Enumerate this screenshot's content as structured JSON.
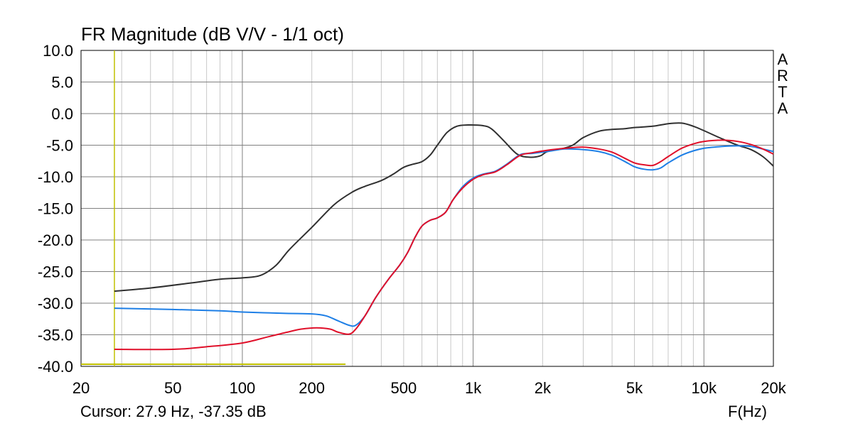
{
  "header": {
    "title": "FR Magnitude (dB V/V - 1/1 oct)"
  },
  "footer": {
    "cursor_text": "Cursor: 27.9 Hz, -37.35 dB",
    "x_unit": "F(Hz)"
  },
  "brand": {
    "letters": [
      "A",
      "R",
      "T",
      "A"
    ]
  },
  "chart_data": {
    "type": "line",
    "title": "FR Magnitude (dB V/V - 1/1 oct)",
    "xlabel": "F(Hz)",
    "ylabel": "",
    "x_scale": "log",
    "xlim": [
      20,
      20000
    ],
    "ylim": [
      -40,
      10
    ],
    "x_ticks": [
      {
        "value": 20,
        "label": "20"
      },
      {
        "value": 50,
        "label": "50"
      },
      {
        "value": 100,
        "label": "100"
      },
      {
        "value": 200,
        "label": "200"
      },
      {
        "value": 500,
        "label": "500"
      },
      {
        "value": 1000,
        "label": "1k"
      },
      {
        "value": 2000,
        "label": "2k"
      },
      {
        "value": 5000,
        "label": "5k"
      },
      {
        "value": 10000,
        "label": "10k"
      },
      {
        "value": 20000,
        "label": "20k"
      }
    ],
    "y_ticks": [
      {
        "value": 10,
        "label": "10.0"
      },
      {
        "value": 5,
        "label": "5.0"
      },
      {
        "value": 0,
        "label": "0.0"
      },
      {
        "value": -5,
        "label": "-5.0"
      },
      {
        "value": -10,
        "label": "-10.0"
      },
      {
        "value": -15,
        "label": "-15.0"
      },
      {
        "value": -20,
        "label": "-20.0"
      },
      {
        "value": -25,
        "label": "-25.0"
      },
      {
        "value": -30,
        "label": "-30.0"
      },
      {
        "value": -35,
        "label": "-35.0"
      },
      {
        "value": -40,
        "label": "-40.0"
      }
    ],
    "grid": true,
    "colors": {
      "grid_major": "#808080",
      "grid_minor": "#c8c8c8",
      "cursor": "#c0c000"
    },
    "cursor": {
      "x": 27.9,
      "y": -37.35,
      "reference_x_end": 280
    },
    "series": [
      {
        "color": "#303030",
        "points": [
          [
            27.9,
            -28.1
          ],
          [
            40,
            -27.6
          ],
          [
            60,
            -26.8
          ],
          [
            80,
            -26.2
          ],
          [
            100,
            -26.0
          ],
          [
            120,
            -25.6
          ],
          [
            140,
            -24.0
          ],
          [
            160,
            -21.5
          ],
          [
            200,
            -18.0
          ],
          [
            250,
            -14.4
          ],
          [
            300,
            -12.4
          ],
          [
            340,
            -11.5
          ],
          [
            400,
            -10.6
          ],
          [
            450,
            -9.6
          ],
          [
            500,
            -8.5
          ],
          [
            550,
            -8.0
          ],
          [
            600,
            -7.6
          ],
          [
            650,
            -6.6
          ],
          [
            700,
            -5.0
          ],
          [
            770,
            -3.0
          ],
          [
            850,
            -2.0
          ],
          [
            950,
            -1.8
          ],
          [
            1100,
            -1.9
          ],
          [
            1200,
            -2.4
          ],
          [
            1350,
            -4.2
          ],
          [
            1550,
            -6.4
          ],
          [
            1750,
            -6.9
          ],
          [
            1950,
            -6.7
          ],
          [
            2100,
            -6.0
          ],
          [
            2400,
            -5.6
          ],
          [
            2700,
            -5.0
          ],
          [
            3000,
            -3.8
          ],
          [
            3500,
            -2.8
          ],
          [
            4000,
            -2.5
          ],
          [
            4500,
            -2.4
          ],
          [
            5000,
            -2.2
          ],
          [
            6000,
            -2.0
          ],
          [
            7000,
            -1.6
          ],
          [
            8000,
            -1.5
          ],
          [
            9000,
            -2.0
          ],
          [
            10000,
            -2.7
          ],
          [
            12000,
            -4.0
          ],
          [
            14000,
            -5.0
          ],
          [
            16000,
            -5.7
          ],
          [
            18000,
            -6.8
          ],
          [
            20000,
            -8.3
          ]
        ]
      },
      {
        "color": "#1e7fe6",
        "points": [
          [
            27.9,
            -30.8
          ],
          [
            50,
            -31.0
          ],
          [
            80,
            -31.2
          ],
          [
            100,
            -31.4
          ],
          [
            150,
            -31.6
          ],
          [
            200,
            -31.7
          ],
          [
            230,
            -32.0
          ],
          [
            260,
            -32.8
          ],
          [
            290,
            -33.5
          ],
          [
            310,
            -33.5
          ],
          [
            340,
            -32.0
          ],
          [
            380,
            -29.0
          ],
          [
            430,
            -26.2
          ],
          [
            480,
            -24.0
          ],
          [
            520,
            -22.0
          ],
          [
            560,
            -19.6
          ],
          [
            600,
            -17.8
          ],
          [
            650,
            -16.9
          ],
          [
            700,
            -16.5
          ],
          [
            760,
            -15.6
          ],
          [
            820,
            -13.6
          ],
          [
            900,
            -11.6
          ],
          [
            1000,
            -10.2
          ],
          [
            1100,
            -9.6
          ],
          [
            1250,
            -9.1
          ],
          [
            1400,
            -8.0
          ],
          [
            1600,
            -6.5
          ],
          [
            1800,
            -6.3
          ],
          [
            2100,
            -6.0
          ],
          [
            2500,
            -5.6
          ],
          [
            3000,
            -5.7
          ],
          [
            3500,
            -6.0
          ],
          [
            4000,
            -6.6
          ],
          [
            4500,
            -7.5
          ],
          [
            5000,
            -8.4
          ],
          [
            5500,
            -8.8
          ],
          [
            6000,
            -8.9
          ],
          [
            6500,
            -8.6
          ],
          [
            7000,
            -7.8
          ],
          [
            8000,
            -6.6
          ],
          [
            9000,
            -5.9
          ],
          [
            10000,
            -5.5
          ],
          [
            12000,
            -5.2
          ],
          [
            14000,
            -5.1
          ],
          [
            16000,
            -5.2
          ],
          [
            18000,
            -5.6
          ],
          [
            20000,
            -6.0
          ]
        ]
      },
      {
        "color": "#e0102a",
        "points": [
          [
            27.9,
            -37.3
          ],
          [
            50,
            -37.3
          ],
          [
            70,
            -36.9
          ],
          [
            100,
            -36.3
          ],
          [
            130,
            -35.3
          ],
          [
            160,
            -34.5
          ],
          [
            180,
            -34.1
          ],
          [
            210,
            -33.9
          ],
          [
            240,
            -34.1
          ],
          [
            260,
            -34.6
          ],
          [
            290,
            -34.9
          ],
          [
            310,
            -34.1
          ],
          [
            340,
            -32.0
          ],
          [
            380,
            -29.0
          ],
          [
            430,
            -26.2
          ],
          [
            480,
            -24.0
          ],
          [
            520,
            -22.0
          ],
          [
            560,
            -19.6
          ],
          [
            600,
            -17.8
          ],
          [
            650,
            -16.9
          ],
          [
            700,
            -16.5
          ],
          [
            760,
            -15.6
          ],
          [
            820,
            -13.6
          ],
          [
            900,
            -11.8
          ],
          [
            1000,
            -10.4
          ],
          [
            1100,
            -9.7
          ],
          [
            1250,
            -9.2
          ],
          [
            1400,
            -8.1
          ],
          [
            1600,
            -6.6
          ],
          [
            1800,
            -6.2
          ],
          [
            2100,
            -5.8
          ],
          [
            2500,
            -5.5
          ],
          [
            3000,
            -5.3
          ],
          [
            3500,
            -5.6
          ],
          [
            4000,
            -6.1
          ],
          [
            4500,
            -7.0
          ],
          [
            5000,
            -7.8
          ],
          [
            5500,
            -8.1
          ],
          [
            6000,
            -8.2
          ],
          [
            6500,
            -7.6
          ],
          [
            7000,
            -6.8
          ],
          [
            8000,
            -5.5
          ],
          [
            9000,
            -4.8
          ],
          [
            10000,
            -4.4
          ],
          [
            12000,
            -4.2
          ],
          [
            14000,
            -4.4
          ],
          [
            16000,
            -4.9
          ],
          [
            18000,
            -5.6
          ],
          [
            20000,
            -6.4
          ]
        ]
      }
    ]
  }
}
